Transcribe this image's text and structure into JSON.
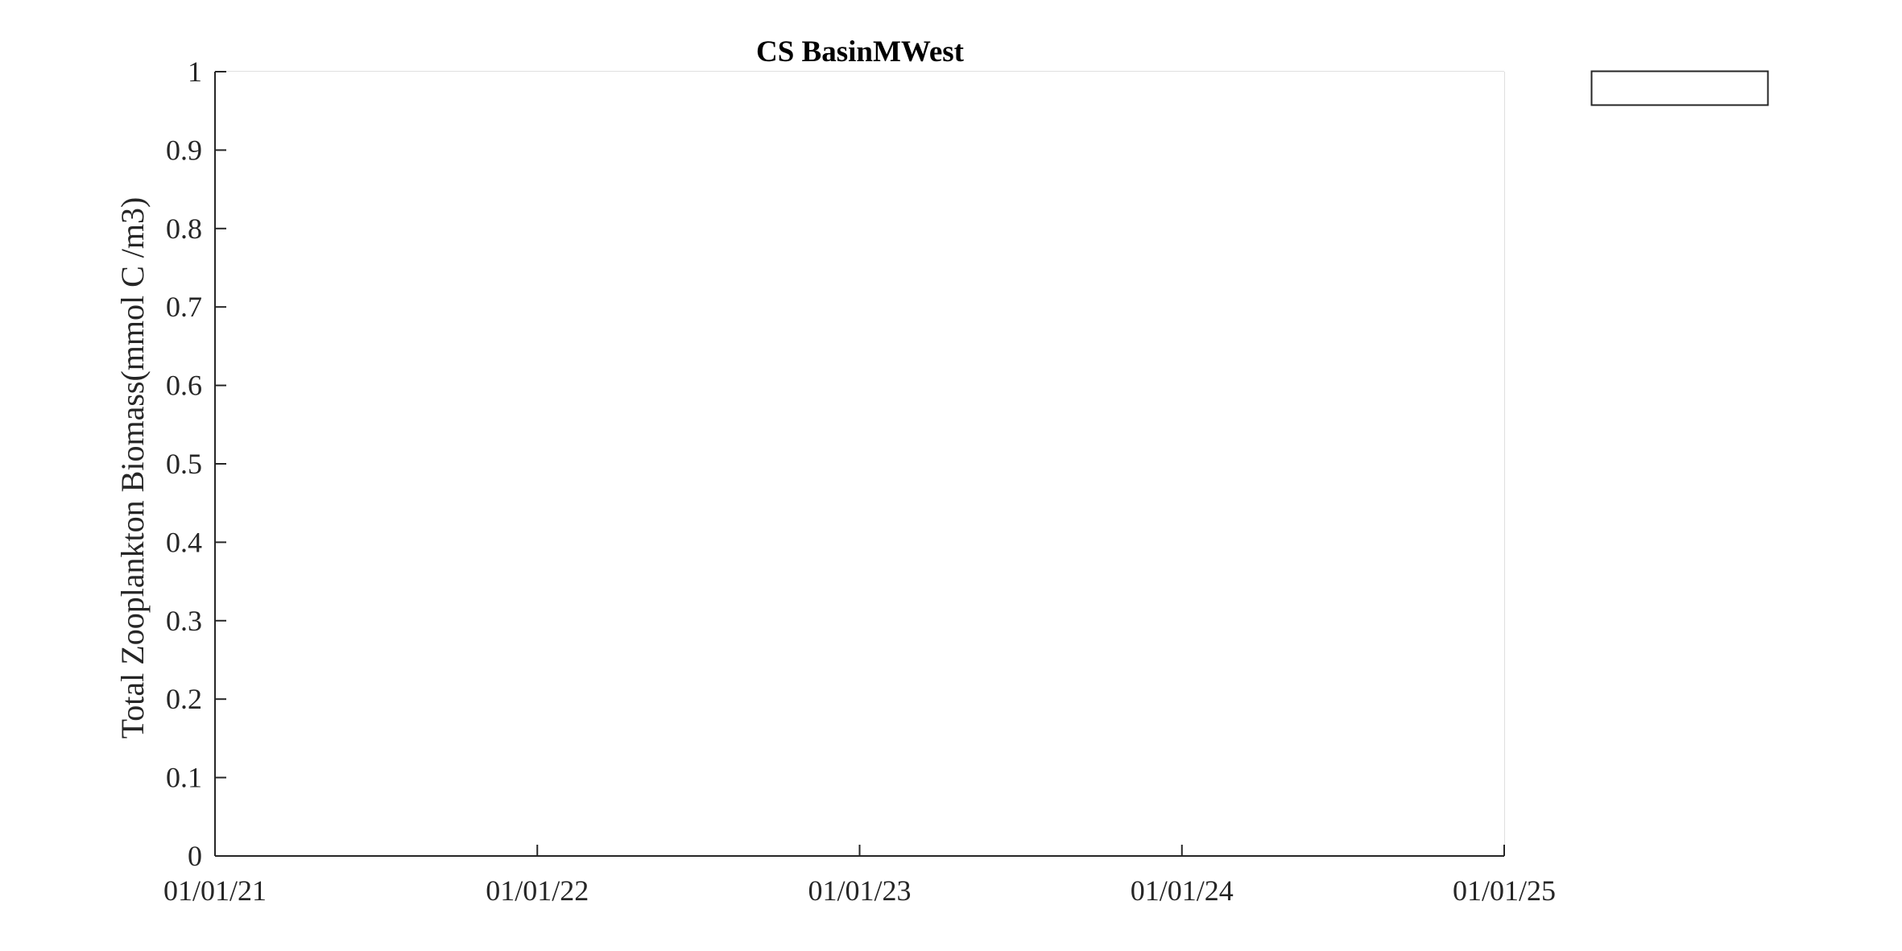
{
  "chart_data": {
    "type": "line",
    "title": "CS BasinMWest",
    "xlabel": "",
    "ylabel": "Total Zooplankton Biomass(mmol C /m3)",
    "x_ticks": [
      "01/01/21",
      "01/01/22",
      "01/01/23",
      "01/01/24",
      "01/01/25"
    ],
    "y_ticks": [
      "0",
      "0.1",
      "0.2",
      "0.3",
      "0.4",
      "0.5",
      "0.6",
      "0.7",
      "0.8",
      "0.9",
      "1"
    ],
    "xlim": [
      "01/01/21",
      "01/01/25"
    ],
    "ylim": [
      0,
      1
    ],
    "grid": true,
    "legend": {
      "placement": "outside-top-right",
      "entries": []
    },
    "series": []
  }
}
